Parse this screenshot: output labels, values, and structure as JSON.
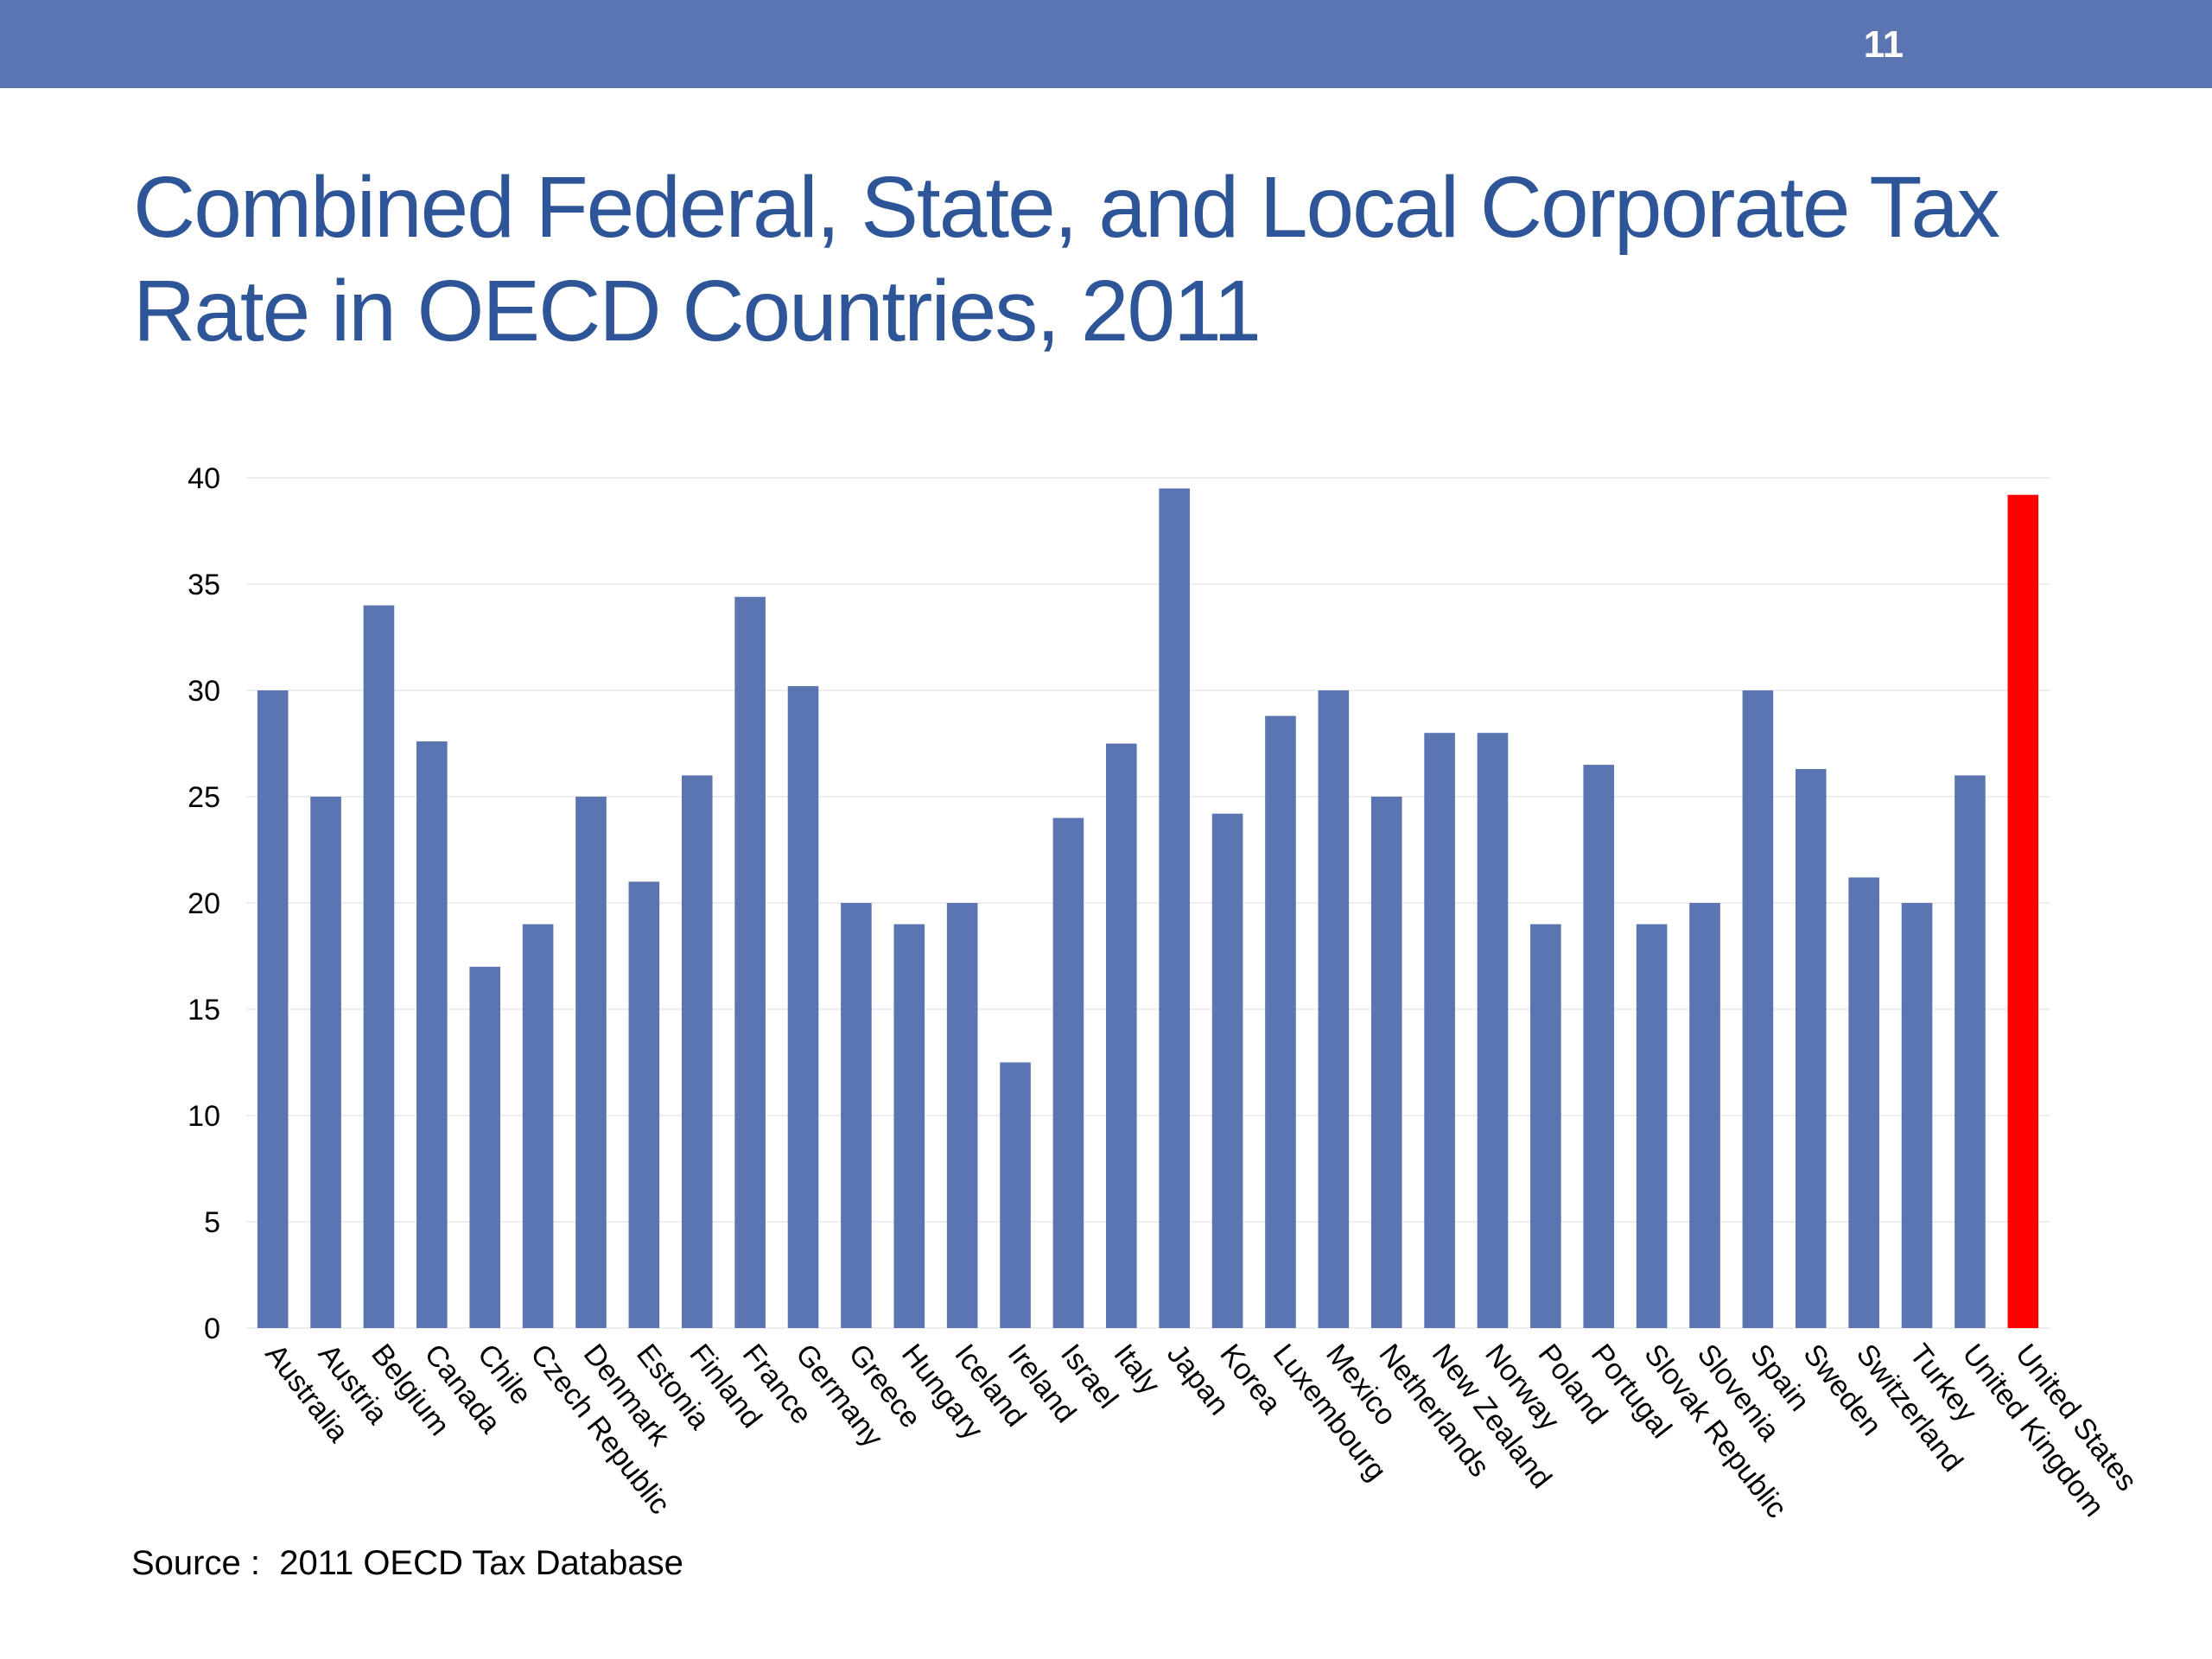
{
  "header": {
    "page_number": "11"
  },
  "title": {
    "line1": "Combined Federal, State, and Local Corporate Tax",
    "line2": "Rate in OECD Countries, 2011"
  },
  "footer": {
    "source": "Source :  2011 OECD Tax Database"
  },
  "colors": {
    "bar": "#5b75b2",
    "highlight_bar": "#ff0000",
    "header_bar": "#5b75b2",
    "title": "#2e5597",
    "gridline": "#eeeeee"
  },
  "chart_data": {
    "type": "bar",
    "title": "",
    "xlabel": "",
    "ylabel": "",
    "ylim": [
      0,
      40
    ],
    "yticks": [
      0,
      5,
      10,
      15,
      20,
      25,
      30,
      35,
      40
    ],
    "grid": true,
    "legend": "none",
    "highlight": "United States",
    "categories": [
      "Australia",
      "Austria",
      "Belgium",
      "Canada",
      "Chile",
      "Czech Republic",
      "Denmark",
      "Estonia",
      "Finland",
      "France",
      "Germany",
      "Greece",
      "Hungary",
      "Iceland",
      "Ireland",
      "Israel",
      "Italy",
      "Japan",
      "Korea",
      "Luxembourg",
      "Mexico",
      "Netherlands",
      "New Zealand",
      "Norway",
      "Poland",
      "Portugal",
      "Slovak Republic",
      "Slovenia",
      "Spain",
      "Sweden",
      "Switzerland",
      "Turkey",
      "United Kingdom",
      "United States"
    ],
    "values": [
      30,
      25,
      34,
      27.6,
      17,
      19,
      25,
      21,
      26,
      34.4,
      30.2,
      20,
      19,
      20,
      12.5,
      24,
      27.5,
      39.5,
      24.2,
      28.8,
      30,
      25,
      28,
      28,
      19,
      26.5,
      19,
      20,
      30,
      26.3,
      21.2,
      20,
      26,
      39.2
    ]
  }
}
